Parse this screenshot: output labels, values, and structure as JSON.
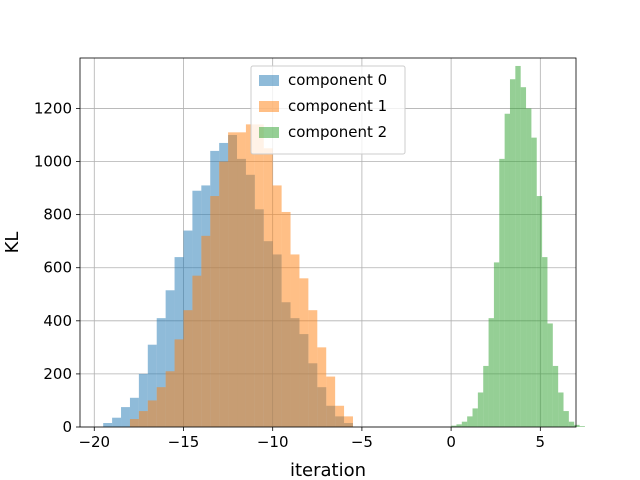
{
  "chart_data": {
    "type": "histogram",
    "title": "",
    "xlabel": "iteration",
    "ylabel": "KL",
    "xlim": [
      -20.8,
      7.0
    ],
    "ylim": [
      0,
      1390
    ],
    "xticks": [
      -20,
      -15,
      -10,
      -5,
      0,
      5
    ],
    "xtick_labels": [
      "−20",
      "−15",
      "−10",
      "−5",
      "0",
      "5"
    ],
    "yticks": [
      0,
      200,
      400,
      600,
      800,
      1000,
      1200
    ],
    "grid": true,
    "legend": "top-center",
    "series": [
      {
        "name": "component 0",
        "color": "#1f77b4",
        "alpha": 0.5,
        "bin_start": -19.5,
        "bin_width": 0.5,
        "counts": [
          15,
          35,
          75,
          110,
          200,
          310,
          410,
          515,
          640,
          740,
          890,
          910,
          1040,
          1070,
          1100,
          1010,
          950,
          820,
          700,
          650,
          470,
          410,
          350,
          240,
          150,
          80,
          40,
          15
        ]
      },
      {
        "name": "component 1",
        "color": "#ff7f0e",
        "alpha": 0.5,
        "bin_start": -18.0,
        "bin_width": 0.5,
        "counts": [
          30,
          60,
          100,
          150,
          210,
          330,
          440,
          570,
          720,
          870,
          1000,
          1110,
          1110,
          1140,
          1140,
          1050,
          910,
          810,
          650,
          560,
          440,
          300,
          190,
          80,
          40
        ]
      },
      {
        "name": "component 2",
        "color": "#2ca02c",
        "alpha": 0.5,
        "bin_start": 0.0,
        "bin_width": 0.3,
        "counts": [
          5,
          10,
          20,
          40,
          70,
          130,
          230,
          410,
          620,
          1010,
          1180,
          1310,
          1360,
          1280,
          1200,
          1090,
          870,
          640,
          390,
          230,
          130,
          60,
          20,
          8,
          3
        ]
      }
    ]
  }
}
